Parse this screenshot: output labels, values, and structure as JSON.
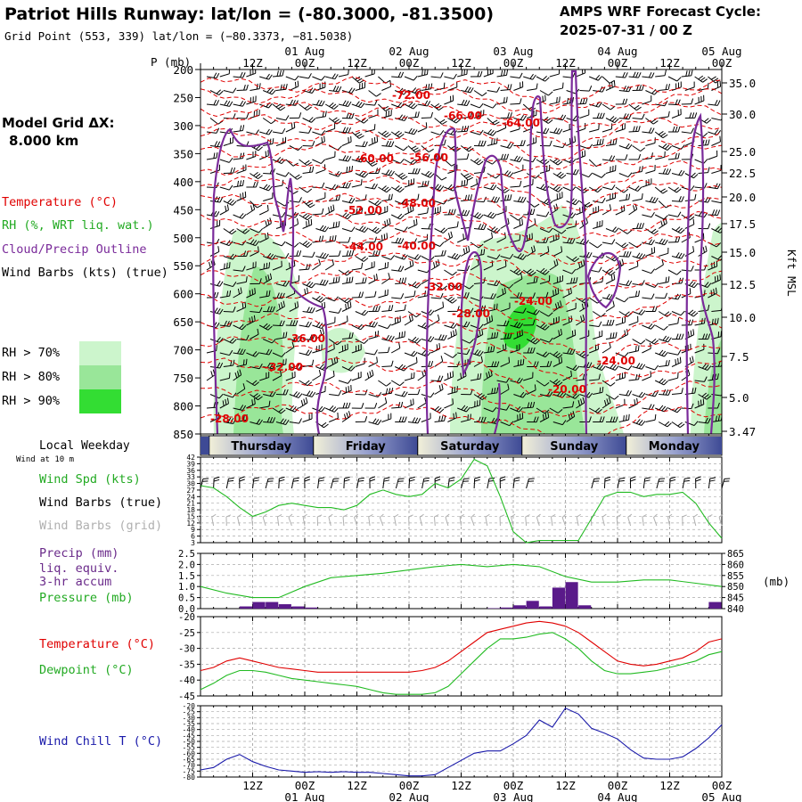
{
  "header": {
    "title": "Patriot Hills Runway:  lat/lon = (-80.3000, -81.3500)",
    "grid_point": "Grid Point (553, 339) lat/lon = (−80.3373, −81.5038)",
    "cycle_line1": "AMPS WRF Forecast Cycle:",
    "cycle_line2": "2025-07-31 / 00  Z"
  },
  "left_panel": {
    "model_grid_label": "Model Grid ΔX:",
    "model_grid_value": "8.000 km",
    "legend": [
      {
        "text": "Temperature (°C)",
        "color": "#e00000"
      },
      {
        "text": "RH (%, WRT liq. wat.)",
        "color": "#22aa22"
      },
      {
        "text": "Cloud/Precip Outline",
        "color": "#7a2a9a"
      },
      {
        "text": "Wind Barbs (kts) (true)",
        "color": "#000000"
      }
    ],
    "rh_bins": [
      {
        "text": "RH > 70%",
        "color": "#ccf5cc"
      },
      {
        "text": "RH > 80%",
        "color": "#99e699"
      },
      {
        "text": "RH > 90%",
        "color": "#33dd33"
      }
    ]
  },
  "colors": {
    "temp": "#e00000",
    "dew": "#22bb22",
    "rh70": "#ccf5cc",
    "rh80": "#99e699",
    "rh90": "#33dd33",
    "cloud": "#7a2a9a",
    "precip": "#5a1a8a",
    "chill": "#1a1aaa",
    "pres": "#22bb22"
  },
  "time_axis": {
    "ticks": [
      "12Z",
      "00Z",
      "12Z",
      "00Z",
      "12Z",
      "00Z",
      "12Z",
      "00Z",
      "12Z",
      "00Z"
    ],
    "dates": [
      "01 Aug",
      "02 Aug",
      "03 Aug",
      "04 Aug",
      "05 Aug"
    ],
    "date_positions_hours": [
      24,
      48,
      72,
      96,
      120
    ],
    "p_unit": "P (mb)",
    "local_weekday_label": "Local Weekday",
    "wind_at_label": "Wind at 10 m",
    "weekdays": [
      "Thursday",
      "Friday",
      "Saturday",
      "Sunday",
      "Monday"
    ]
  },
  "cross_section": {
    "pressure_ticks": [
      200,
      250,
      300,
      350,
      400,
      450,
      500,
      550,
      600,
      650,
      700,
      750,
      800,
      850
    ],
    "kft_ticks": [
      "35.0",
      "30.0",
      "25.0",
      "22.5",
      "20.0",
      "17.5",
      "15.0",
      "12.5",
      "10.0",
      "7.5",
      "5.0",
      "3.47"
    ],
    "kft_unit": "Kft MSL",
    "temp_labels": [
      "-72.00",
      "-66.00",
      "-64.00",
      "-60.00",
      "-56.00",
      "-52.00",
      "-48.00",
      "-44.00",
      "-40.00",
      "-32.00",
      "-28.00",
      "-24.00",
      "-36.00",
      "-32.00",
      "-24.00",
      "-20.00",
      "-28.00"
    ]
  },
  "panels": {
    "wind": {
      "labels": [
        {
          "text": "Wind Spd (kts)",
          "color": "#22aa22"
        },
        {
          "text": "Wind Barbs (true)",
          "color": "#000000"
        },
        {
          "text": "Wind Barbs (grid)",
          "color": "#b0b0b0"
        }
      ],
      "ticks": [
        "42",
        "39",
        "36",
        "33",
        "30",
        "27",
        "24",
        "21",
        "18",
        "15",
        "12",
        "9",
        "6",
        "3"
      ]
    },
    "precip": {
      "labels": [
        {
          "text": "Precip (mm)",
          "color": "#6a2a8a"
        },
        {
          "text": "liq. equiv.",
          "color": "#6a2a8a"
        },
        {
          "text": "3-hr accum",
          "color": "#6a2a8a"
        },
        {
          "text": "Pressure (mb)",
          "color": "#22aa22"
        }
      ],
      "left_ticks": [
        "2.5",
        "2.0",
        "1.5",
        "1.0",
        "0.5",
        "0.0"
      ],
      "right_ticks": [
        "865",
        "860",
        "855",
        "850",
        "845",
        "840"
      ],
      "right_unit": "(mb)"
    },
    "temp": {
      "labels": [
        {
          "text": "Temperature (°C)",
          "color": "#e00000"
        },
        {
          "text": "Dewpoint (°C)",
          "color": "#22aa22"
        }
      ],
      "ticks": [
        "-20",
        "-25",
        "-30",
        "-35",
        "-40",
        "-45"
      ]
    },
    "chill": {
      "labels": [
        {
          "text": "Wind Chill T (°C)",
          "color": "#1a1aaa"
        }
      ],
      "ticks": [
        "-20",
        "-25",
        "-30",
        "-35",
        "-40",
        "-45",
        "-50",
        "-55",
        "-60",
        "-65",
        "-70",
        "-75",
        "-80"
      ]
    }
  },
  "chart_data": [
    {
      "type": "line",
      "title": "Wind Spd (kts)",
      "x": [
        0,
        3,
        6,
        9,
        12,
        15,
        18,
        21,
        24,
        27,
        30,
        33,
        36,
        39,
        42,
        45,
        48,
        51,
        54,
        57,
        60,
        63,
        66,
        69,
        72,
        75,
        78,
        81,
        84,
        87,
        90,
        93,
        96,
        99,
        102,
        105,
        108,
        111,
        114,
        117,
        120
      ],
      "ylim": [
        3,
        42
      ],
      "series": [
        {
          "name": "Wind Spd (kts)",
          "values": [
            29,
            28,
            24,
            19,
            15,
            17,
            20,
            21,
            20,
            19,
            19,
            18,
            20,
            25,
            27,
            25,
            24,
            25,
            30,
            28,
            32,
            41,
            38,
            24,
            8,
            3,
            4,
            4,
            4,
            4,
            14,
            24,
            26,
            26,
            24,
            25,
            25,
            26,
            21,
            12,
            5
          ]
        }
      ]
    },
    {
      "type": "bar",
      "title": "Precip (mm) liq. equiv. 3-hr accum",
      "x": [
        0,
        3,
        6,
        9,
        12,
        15,
        18,
        21,
        24,
        27,
        30,
        33,
        36,
        39,
        42,
        45,
        48,
        51,
        54,
        57,
        60,
        63,
        66,
        69,
        72,
        75,
        78,
        81,
        84,
        87,
        90,
        93,
        96,
        99,
        102,
        105,
        108,
        111,
        114,
        117
      ],
      "ylim": [
        0,
        2.5
      ],
      "series": [
        {
          "name": "Precip (mm)",
          "values": [
            0,
            0,
            0,
            0.1,
            0.3,
            0.3,
            0.2,
            0.1,
            0.05,
            0,
            0,
            0,
            0,
            0,
            0,
            0,
            0,
            0,
            0,
            0,
            0,
            0,
            0.02,
            0.05,
            0.15,
            0.35,
            0.1,
            0.95,
            1.2,
            0.15,
            0,
            0,
            0,
            0,
            0,
            0,
            0,
            0,
            0,
            0.3
          ]
        }
      ]
    },
    {
      "type": "line",
      "title": "Pressure (mb)",
      "x": [
        0,
        6,
        12,
        18,
        24,
        30,
        36,
        42,
        48,
        54,
        60,
        66,
        72,
        78,
        84,
        90,
        96,
        102,
        108,
        114,
        120
      ],
      "ylim": [
        840,
        865
      ],
      "series": [
        {
          "name": "Pressure (mb)",
          "values": [
            850,
            847,
            845,
            845,
            850,
            854,
            855,
            856,
            857.5,
            859,
            860,
            859,
            860,
            859,
            854.5,
            852,
            852,
            853,
            853,
            851.5,
            850
          ]
        }
      ]
    },
    {
      "type": "line",
      "title": "Temperature / Dewpoint (°C)",
      "x": [
        0,
        3,
        6,
        9,
        12,
        15,
        18,
        21,
        24,
        27,
        30,
        33,
        36,
        39,
        42,
        45,
        48,
        51,
        54,
        57,
        60,
        63,
        66,
        69,
        72,
        75,
        78,
        81,
        84,
        87,
        90,
        93,
        96,
        99,
        102,
        105,
        108,
        111,
        114,
        117,
        120
      ],
      "ylim": [
        -45,
        -20
      ],
      "series": [
        {
          "name": "Temperature (°C)",
          "values": [
            -37,
            -36,
            -34,
            -33,
            -34,
            -35,
            -36,
            -36.5,
            -37,
            -37.5,
            -37.5,
            -37.5,
            -37.5,
            -37.5,
            -37.5,
            -37.5,
            -37.5,
            -37,
            -36,
            -34,
            -31,
            -28,
            -25,
            -24,
            -23,
            -22,
            -21.5,
            -22,
            -23,
            -25,
            -28,
            -31,
            -34,
            -35,
            -35.5,
            -35,
            -34,
            -33,
            -31,
            -28,
            -27
          ]
        },
        {
          "name": "Dewpoint (°C)",
          "values": [
            -43,
            -41,
            -38.5,
            -37,
            -37,
            -37.5,
            -38.5,
            -39.5,
            -40,
            -40.5,
            -41,
            -41.5,
            -42,
            -43,
            -44,
            -44.5,
            -44.5,
            -44.5,
            -44,
            -42,
            -38,
            -34,
            -30,
            -27,
            -27,
            -26.5,
            -25.5,
            -25,
            -27,
            -30,
            -34,
            -37,
            -38,
            -38,
            -37.5,
            -37,
            -36,
            -35,
            -34,
            -32,
            -31
          ]
        }
      ]
    },
    {
      "type": "line",
      "title": "Wind Chill T (°C)",
      "x": [
        0,
        3,
        6,
        9,
        12,
        15,
        18,
        21,
        24,
        27,
        30,
        33,
        36,
        39,
        42,
        45,
        48,
        51,
        54,
        57,
        60,
        63,
        66,
        69,
        72,
        75,
        78,
        81,
        84,
        87,
        90,
        93,
        96,
        99,
        102,
        105,
        108,
        111,
        114,
        117,
        120
      ],
      "ylim": [
        -80,
        -20
      ],
      "series": [
        {
          "name": "Wind Chill T (°C)",
          "values": [
            -74,
            -72,
            -65,
            -61,
            -67,
            -71,
            -74,
            -75,
            -76,
            -75.5,
            -76,
            -75.5,
            -76,
            -76,
            -77,
            -78,
            -79,
            -79,
            -78,
            -72,
            -66,
            -60,
            -58,
            -58,
            -52,
            -45,
            -32,
            -38,
            -22,
            -27,
            -39,
            -43,
            -48,
            -57,
            -64,
            -65,
            -65,
            -63,
            -56,
            -47,
            -36
          ]
        }
      ]
    }
  ]
}
